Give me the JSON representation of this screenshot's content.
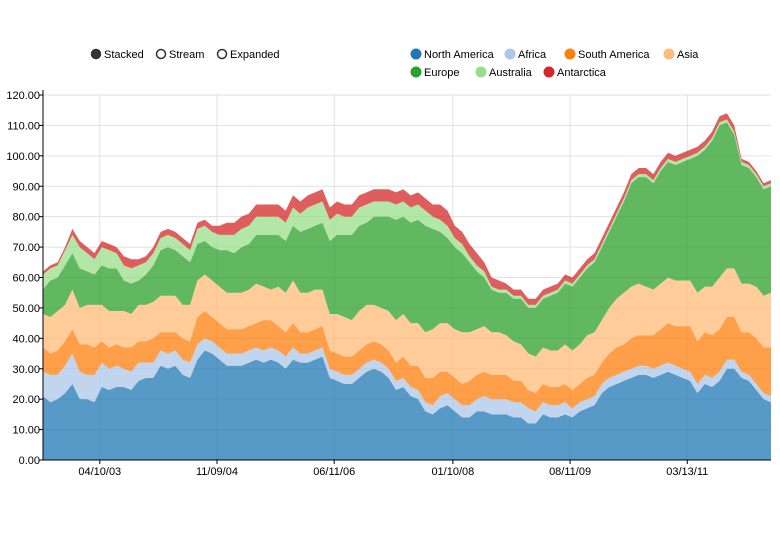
{
  "controls": [
    {
      "label": "Stacked",
      "selected": true
    },
    {
      "label": "Stream",
      "selected": false
    },
    {
      "label": "Expanded",
      "selected": false
    }
  ],
  "chart_data": {
    "type": "area",
    "stacked": true,
    "ylim": [
      0,
      120
    ],
    "y_ticks": [
      "0.00",
      "10.00",
      "20.00",
      "30.00",
      "40.00",
      "50.00",
      "60.00",
      "70.00",
      "80.00",
      "90.00",
      "100.00",
      "110.00",
      "120.00"
    ],
    "x_tick_labels": [
      "04/10/03",
      "11/09/04",
      "06/11/06",
      "01/10/08",
      "08/11/09",
      "03/13/11"
    ],
    "legend_position": "top-right",
    "series": [
      {
        "name": "North America",
        "color": "#1f77b4",
        "values": [
          21,
          19,
          20,
          22,
          25,
          20,
          20,
          19,
          24,
          23,
          24,
          24,
          23,
          26,
          27,
          27,
          31,
          30,
          31,
          28,
          27,
          33,
          36,
          35,
          33,
          31,
          31,
          31,
          32,
          33,
          32,
          33,
          32,
          30,
          33,
          32,
          32,
          33,
          34,
          27,
          26,
          25,
          25,
          27,
          29,
          30,
          29,
          27,
          23,
          24,
          21,
          20,
          16,
          15,
          17,
          18,
          16,
          14,
          14,
          16,
          16,
          15,
          15,
          15,
          14,
          14,
          12,
          12,
          15,
          14,
          14,
          15,
          14,
          16,
          17,
          18,
          22,
          24,
          25,
          26,
          27,
          28,
          28,
          27,
          28,
          29,
          28,
          27,
          26,
          22,
          25,
          24,
          26,
          30,
          30,
          27,
          26,
          23,
          20,
          19
        ]
      },
      {
        "name": "Africa",
        "color": "#aec7e8",
        "values": [
          8,
          9,
          8,
          9,
          10,
          9,
          8,
          9,
          8,
          7,
          7,
          6,
          6,
          6,
          5,
          5,
          5,
          5,
          5,
          5,
          5,
          5,
          4,
          4,
          4,
          4,
          4,
          4,
          4,
          4,
          4,
          4,
          4,
          4,
          4,
          3,
          3,
          3,
          3,
          3,
          3,
          3,
          3,
          3,
          3,
          3,
          3,
          3,
          3,
          3,
          3,
          3,
          3,
          3,
          4,
          4,
          4,
          4,
          4,
          4,
          5,
          5,
          5,
          5,
          5,
          5,
          5,
          4,
          4,
          4,
          4,
          4,
          3,
          3,
          3,
          3,
          3,
          3,
          3,
          3,
          3,
          3,
          3,
          3,
          3,
          3,
          3,
          3,
          3,
          3,
          3,
          3,
          3,
          3,
          3,
          2,
          2,
          2,
          2,
          2
        ]
      },
      {
        "name": "South America",
        "color": "#ff7f0e",
        "values": [
          8,
          7,
          8,
          8,
          8,
          9,
          10,
          9,
          7,
          7,
          7,
          7,
          8,
          7,
          7,
          8,
          6,
          7,
          6,
          7,
          7,
          9,
          9,
          8,
          8,
          8,
          8,
          8,
          8,
          8,
          10,
          9,
          8,
          8,
          8,
          7,
          7,
          7,
          7,
          6,
          6,
          6,
          6,
          6,
          6,
          6,
          6,
          6,
          6,
          7,
          7,
          8,
          8,
          9,
          8,
          7,
          7,
          7,
          8,
          8,
          8,
          8,
          8,
          8,
          7,
          7,
          6,
          6,
          6,
          6,
          6,
          6,
          6,
          6,
          7,
          7,
          7,
          8,
          9,
          9,
          10,
          10,
          10,
          11,
          12,
          13,
          13,
          14,
          15,
          14,
          14,
          14,
          14,
          14,
          14,
          13,
          14,
          15,
          15,
          16
        ]
      },
      {
        "name": "Asia",
        "color": "#ffbb78",
        "values": [
          11,
          12,
          13,
          12,
          13,
          12,
          13,
          14,
          12,
          12,
          11,
          12,
          11,
          12,
          12,
          12,
          12,
          12,
          12,
          11,
          12,
          12,
          12,
          12,
          12,
          12,
          12,
          12,
          12,
          13,
          11,
          10,
          13,
          13,
          14,
          13,
          13,
          13,
          12,
          12,
          13,
          13,
          12,
          13,
          13,
          12,
          12,
          13,
          14,
          14,
          14,
          14,
          15,
          16,
          16,
          16,
          16,
          17,
          16,
          15,
          15,
          14,
          14,
          13,
          13,
          12,
          12,
          12,
          12,
          12,
          12,
          13,
          13,
          13,
          14,
          14,
          14,
          15,
          16,
          17,
          17,
          17,
          16,
          15,
          15,
          15,
          15,
          15,
          15,
          16,
          15,
          16,
          17,
          16,
          16,
          16,
          16,
          17,
          17,
          18
        ]
      },
      {
        "name": "Europe",
        "color": "#2ca02c",
        "values": [
          8,
          12,
          11,
          13,
          12,
          13,
          11,
          10,
          13,
          14,
          14,
          10,
          10,
          8,
          10,
          12,
          15,
          16,
          15,
          16,
          14,
          12,
          11,
          11,
          12,
          14,
          13,
          15,
          15,
          16,
          17,
          18,
          17,
          17,
          18,
          20,
          21,
          21,
          22,
          24,
          26,
          27,
          28,
          28,
          27,
          29,
          30,
          31,
          33,
          32,
          33,
          34,
          35,
          33,
          30,
          28,
          27,
          26,
          23,
          19,
          16,
          14,
          13,
          14,
          14,
          15,
          15,
          16,
          16,
          18,
          19,
          20,
          21,
          22,
          22,
          23,
          24,
          25,
          27,
          30,
          34,
          35,
          36,
          35,
          37,
          38,
          38,
          39,
          40,
          45,
          45,
          48,
          50,
          48,
          44,
          39,
          38,
          36,
          35,
          35
        ]
      },
      {
        "name": "Australia",
        "color": "#98df8a",
        "values": [
          5,
          4,
          4,
          5,
          6,
          7,
          6,
          5,
          6,
          6,
          5,
          5,
          5,
          5,
          4,
          4,
          4,
          4,
          4,
          4,
          4,
          5,
          5,
          5,
          5,
          5,
          6,
          6,
          6,
          6,
          6,
          6,
          6,
          6,
          6,
          6,
          7,
          7,
          7,
          7,
          7,
          6,
          6,
          6,
          6,
          5,
          5,
          5,
          5,
          5,
          5,
          5,
          5,
          4,
          4,
          4,
          3,
          3,
          2,
          2,
          2,
          1,
          1,
          1,
          1,
          1,
          1,
          1,
          1,
          1,
          1,
          1,
          1,
          1,
          1,
          1,
          1,
          1,
          1,
          1,
          1,
          1,
          1,
          1,
          1,
          1,
          1,
          1,
          1,
          1,
          1,
          1,
          1,
          1,
          1,
          1,
          1,
          1,
          1,
          1
        ]
      },
      {
        "name": "Antarctica",
        "color": "#d62728",
        "values": [
          1,
          1,
          1,
          1,
          2,
          2,
          2,
          2,
          2,
          2,
          2,
          3,
          3,
          2,
          2,
          2,
          2,
          2,
          2,
          2,
          2,
          2,
          2,
          2,
          3,
          4,
          4,
          4,
          4,
          4,
          4,
          4,
          4,
          4,
          4,
          4,
          4,
          4,
          4,
          4,
          4,
          4,
          4,
          4,
          4,
          4,
          4,
          4,
          4,
          4,
          4,
          4,
          4,
          4,
          5,
          5,
          4,
          4,
          4,
          4,
          3,
          3,
          3,
          2,
          2,
          2,
          2,
          2,
          2,
          2,
          2,
          2,
          2,
          2,
          2,
          2,
          2,
          2,
          2,
          2,
          2,
          2,
          2,
          2,
          2,
          2,
          2,
          2,
          2,
          2,
          2,
          2,
          2,
          2,
          2,
          1,
          1,
          1,
          1,
          1
        ]
      }
    ]
  }
}
